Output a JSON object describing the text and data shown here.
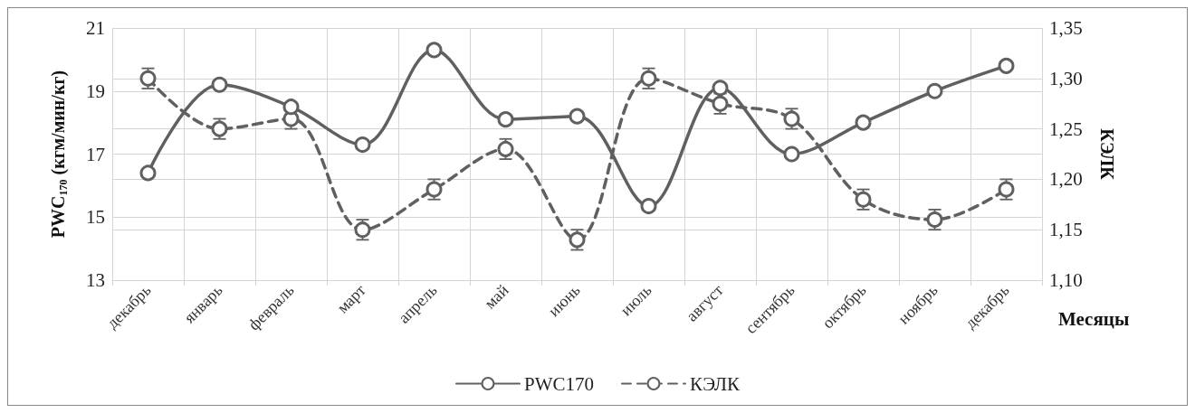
{
  "chart_data": {
    "type": "line",
    "ylabel": "PWC$_{170}$ (кгм/мин/кг)",
    "y2label": "КЭЛК",
    "xlabel": "Месяцы",
    "categories": [
      "декабрь",
      "январь",
      "февраль",
      "март",
      "апрель",
      "май",
      "июнь",
      "июль",
      "август",
      "сентябрь",
      "октябрь",
      "ноябрь",
      "декабрь"
    ],
    "series": [
      {
        "name": "PWC170",
        "color": "#606060",
        "line_style": "solid",
        "values": [
          16.4,
          19.2,
          18.5,
          17.3,
          20.3,
          18.1,
          18.2,
          15.35,
          19.1,
          17.0,
          18.0,
          19.0,
          19.8
        ]
      },
      {
        "name": "КЭЛК",
        "color": "#606060",
        "line_style": "dashed",
        "axis": "y2",
        "values": [
          1.3,
          1.25,
          1.26,
          1.15,
          1.19,
          1.23,
          1.14,
          1.3,
          1.275,
          1.26,
          1.18,
          1.16,
          1.19
        ],
        "errors": [
          0.01,
          0.01,
          0.01,
          0.01,
          0.01,
          0.01,
          0.01,
          0.01,
          0.01,
          0.01,
          0.01,
          0.01,
          0.01
        ]
      }
    ],
    "ylim": [
      13,
      21
    ],
    "yticks": [
      13,
      15,
      17,
      19,
      21
    ],
    "y2lim": [
      1.1,
      1.35
    ],
    "y2ticks": [
      {
        "value": 1.1,
        "label": "1,10"
      },
      {
        "value": 1.15,
        "label": "1,15"
      },
      {
        "value": 1.2,
        "label": "1,20"
      },
      {
        "value": 1.25,
        "label": "1,25"
      },
      {
        "value": 1.3,
        "label": "1,30"
      },
      {
        "value": 1.35,
        "label": "1,35"
      }
    ],
    "grid": true,
    "legend": "bottom",
    "marker": "circle"
  }
}
